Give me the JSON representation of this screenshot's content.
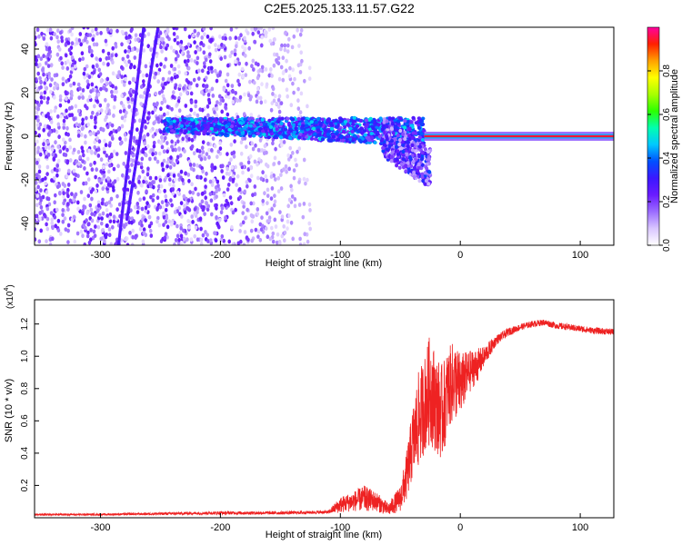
{
  "figure": {
    "title": "C2E5.2025.133.11.57.G22"
  },
  "chart_data": [
    {
      "type": "heatmap",
      "xlabel": "Height of straight line (km)",
      "ylabel": "Frequency (Hz)",
      "xlim": [
        -355,
        128
      ],
      "ylim": [
        -50,
        50
      ],
      "x_ticks": [
        -300,
        -200,
        -100,
        0,
        100
      ],
      "y_ticks": [
        -40,
        -20,
        0,
        20,
        40
      ],
      "colorbar": {
        "label": "Normalized spectral amplitude",
        "range": [
          0,
          1
        ],
        "ticks": [
          "0.0",
          "0.2",
          "0.4",
          "0.6",
          "0.8"
        ],
        "tick_values": [
          0.0,
          0.2,
          0.4,
          0.6,
          0.8
        ],
        "colors": [
          "#ffffff",
          "#d9c6ff",
          "#9b6cff",
          "#6a1bff",
          "#3b17ff",
          "#0050ff",
          "#00c8ff",
          "#00ffb0",
          "#2cff00",
          "#a8ff00",
          "#ffff00",
          "#ffa000",
          "#ff2000",
          "#ff00a0"
        ]
      },
      "noise_region": {
        "x": [
          -355,
          -125
        ],
        "y": [
          -50,
          50
        ],
        "level": 0.18
      },
      "features": [
        {
          "name": "diagonal-streak-1",
          "x": [
            -285,
            -264
          ],
          "y": [
            -50,
            50
          ]
        },
        {
          "name": "diagonal-streak-2",
          "x": [
            -278,
            -252
          ],
          "y": [
            -38,
            50
          ]
        },
        {
          "name": "signal-band",
          "x": [
            -247,
            -30
          ],
          "y_center": [
            5,
            2
          ],
          "width": 6,
          "level": 0.45
        },
        {
          "name": "dispersed-segment",
          "x": [
            -65,
            -25
          ],
          "y_center": [
            0,
            -15
          ],
          "level": 0.3
        },
        {
          "name": "tone",
          "x": [
            -30,
            128
          ],
          "y": 0,
          "level": 0.95
        }
      ]
    },
    {
      "type": "line",
      "xlabel": "Height of straight line (km)",
      "ylabel": "SNR (10 * v/v)",
      "exponent_label": "(x10",
      "exponent_power": "4",
      "exponent_close": ")",
      "xlim": [
        -355,
        128
      ],
      "ylim": [
        0,
        1.35
      ],
      "x_ticks": [
        -300,
        -200,
        -100,
        0,
        100
      ],
      "y_ticks": [
        "0.2",
        "0.4",
        "0.6",
        "0.8",
        "1.0",
        "1.2"
      ],
      "y_tick_values": [
        0.2,
        0.4,
        0.6,
        0.8,
        1.0,
        1.2
      ],
      "series": [
        {
          "color": "#ee2222",
          "x": [
            -355,
            -300,
            -250,
            -200,
            -150,
            -110,
            -100,
            -90,
            -80,
            -70,
            -60,
            -50,
            -45,
            -40,
            -35,
            -30,
            -25,
            -20,
            -15,
            -10,
            -5,
            0,
            5,
            10,
            15,
            20,
            25,
            30,
            40,
            50,
            60,
            70,
            80,
            90,
            100,
            110,
            128
          ],
          "y": [
            0.02,
            0.02,
            0.025,
            0.03,
            0.03,
            0.035,
            0.08,
            0.1,
            0.12,
            0.1,
            0.05,
            0.12,
            0.25,
            0.45,
            0.6,
            0.7,
            0.8,
            0.7,
            0.65,
            0.8,
            0.85,
            0.82,
            0.88,
            0.92,
            0.95,
            1.0,
            1.05,
            1.1,
            1.15,
            1.18,
            1.2,
            1.21,
            1.19,
            1.18,
            1.17,
            1.16,
            1.15
          ],
          "noise": [
            0.006,
            0.006,
            0.008,
            0.01,
            0.01,
            0.01,
            0.05,
            0.06,
            0.08,
            0.06,
            0.04,
            0.08,
            0.15,
            0.22,
            0.3,
            0.3,
            0.35,
            0.3,
            0.3,
            0.25,
            0.25,
            0.2,
            0.15,
            0.12,
            0.1,
            0.06,
            0.05,
            0.03,
            0.025,
            0.02,
            0.02,
            0.02,
            0.02,
            0.02,
            0.02,
            0.02,
            0.02
          ]
        }
      ]
    }
  ]
}
